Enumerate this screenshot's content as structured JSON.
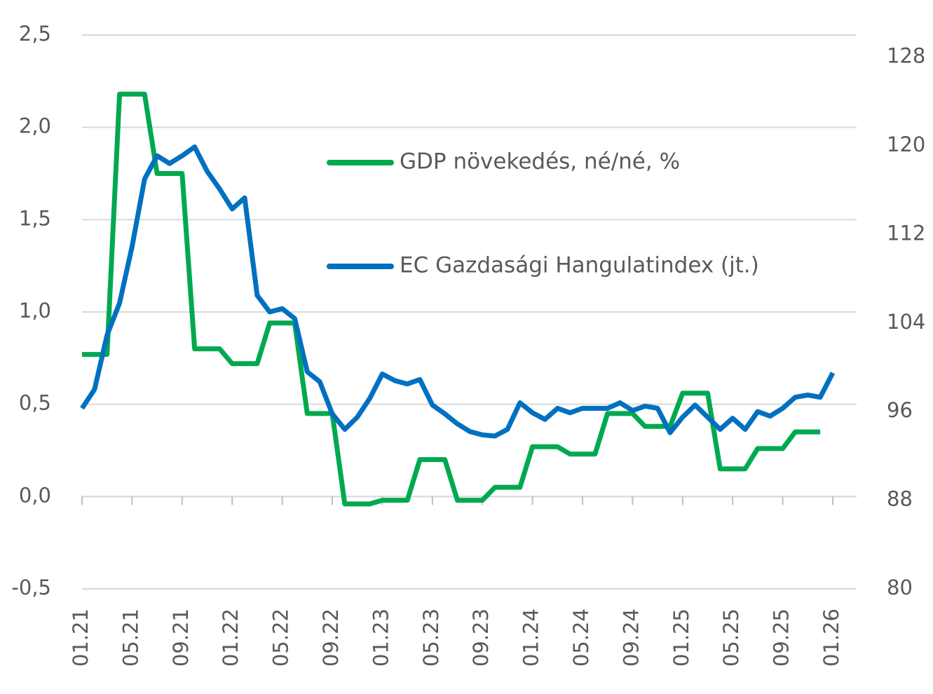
{
  "chart_data": {
    "type": "line",
    "categories": [
      "01.21",
      null,
      null,
      null,
      "05.21",
      null,
      null,
      null,
      "09.21",
      null,
      null,
      null,
      "01.22",
      null,
      null,
      null,
      "05.22",
      null,
      null,
      null,
      "09.22",
      null,
      null,
      null,
      "01.23",
      null,
      null,
      null,
      "05.23",
      null,
      null,
      null,
      "09.23",
      null,
      null,
      null,
      "01.24",
      null,
      null,
      null,
      "05.24",
      null,
      null,
      null,
      "09.24",
      null,
      null,
      null,
      "01.25",
      null,
      null,
      null,
      "05.25",
      null,
      null,
      null,
      "09.25",
      null,
      null,
      null,
      "01.26"
    ],
    "series": [
      {
        "name": "GDP növekedés, né/né, %",
        "color": "#00a94f",
        "axis": "y",
        "values": [
          0.77,
          0.77,
          0.77,
          2.18,
          2.18,
          2.18,
          1.75,
          1.75,
          1.75,
          0.8,
          0.8,
          0.8,
          0.72,
          0.72,
          0.72,
          0.94,
          0.94,
          0.94,
          0.45,
          0.45,
          0.45,
          -0.04,
          -0.04,
          -0.04,
          -0.02,
          -0.02,
          -0.02,
          0.2,
          0.2,
          0.2,
          -0.02,
          -0.02,
          -0.02,
          0.05,
          0.05,
          0.05,
          0.27,
          0.27,
          0.27,
          0.23,
          0.23,
          0.23,
          0.45,
          0.45,
          0.45,
          0.38,
          0.38,
          0.38,
          0.56,
          0.56,
          0.56,
          0.15,
          0.15,
          0.15,
          0.26,
          0.26,
          0.26,
          0.35,
          0.35,
          0.35,
          null
        ]
      },
      {
        "name": "EC Gazdasági Hangulatindex (jt.)",
        "color": "#0070c0",
        "axis": "y2",
        "values": [
          96.3,
          98.0,
          102.9,
          105.8,
          110.9,
          117.0,
          119.1,
          118.4,
          119.1,
          119.9,
          117.7,
          116.1,
          114.3,
          115.3,
          106.5,
          105.0,
          105.3,
          104.4,
          99.6,
          98.7,
          95.8,
          94.4,
          95.5,
          97.2,
          99.4,
          98.8,
          98.5,
          98.9,
          96.6,
          95.8,
          94.9,
          94.2,
          93.9,
          93.8,
          94.4,
          96.8,
          95.9,
          95.3,
          96.3,
          95.9,
          96.3,
          96.3,
          96.3,
          96.8,
          96.1,
          96.5,
          96.3,
          94.1,
          95.5,
          96.6,
          95.5,
          94.4,
          95.4,
          94.4,
          96.0,
          95.6,
          96.3,
          97.3,
          97.5,
          97.3,
          99.5
        ]
      }
    ],
    "ylim": [
      -0.5,
      2.5
    ],
    "yticks": [
      {
        "value": -0.5,
        "label": "-0,5"
      },
      {
        "value": 0,
        "label": "0,0"
      },
      {
        "value": 0.5,
        "label": "0,5"
      },
      {
        "value": 1,
        "label": "1,0"
      },
      {
        "value": 1.5,
        "label": "1,5"
      },
      {
        "value": 2,
        "label": "2,0"
      },
      {
        "value": 2.5,
        "label": "2,5"
      }
    ],
    "y2lim": [
      80,
      130
    ],
    "y2ticks": [
      80,
      88,
      96,
      104,
      112,
      120,
      128
    ],
    "grid": true
  }
}
